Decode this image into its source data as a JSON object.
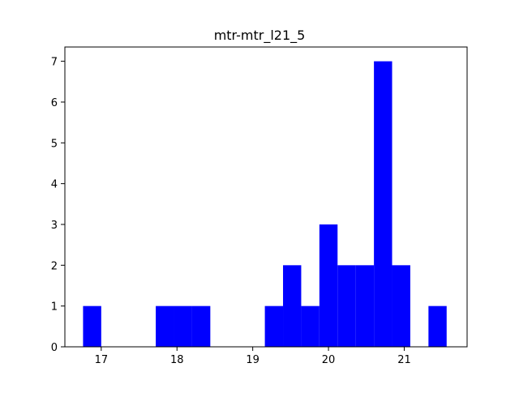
{
  "chart_data": {
    "type": "bar",
    "title": "mtr-mtr_l21_5",
    "xlabel": "",
    "ylabel": "",
    "xlim": [
      16.52,
      21.83
    ],
    "ylim": [
      0,
      7.35
    ],
    "xticks": [
      17,
      18,
      19,
      20,
      21
    ],
    "yticks": [
      0,
      1,
      2,
      3,
      4,
      5,
      6,
      7
    ],
    "bar_color": "#0000ff",
    "grid": false,
    "bins": [
      {
        "x0": 16.76,
        "x1": 17.0,
        "count": 1
      },
      {
        "x0": 17.0,
        "x1": 17.24,
        "count": 0
      },
      {
        "x0": 17.24,
        "x1": 17.48,
        "count": 0
      },
      {
        "x0": 17.48,
        "x1": 17.72,
        "count": 0
      },
      {
        "x0": 17.72,
        "x1": 17.96,
        "count": 1
      },
      {
        "x0": 17.96,
        "x1": 18.2,
        "count": 1
      },
      {
        "x0": 18.2,
        "x1": 18.44,
        "count": 1
      },
      {
        "x0": 18.44,
        "x1": 18.68,
        "count": 0
      },
      {
        "x0": 18.68,
        "x1": 18.92,
        "count": 0
      },
      {
        "x0": 18.92,
        "x1": 19.16,
        "count": 0
      },
      {
        "x0": 19.16,
        "x1": 19.4,
        "count": 1
      },
      {
        "x0": 19.4,
        "x1": 19.64,
        "count": 2
      },
      {
        "x0": 19.64,
        "x1": 19.88,
        "count": 1
      },
      {
        "x0": 19.88,
        "x1": 20.12,
        "count": 3
      },
      {
        "x0": 20.12,
        "x1": 20.36,
        "count": 2
      },
      {
        "x0": 20.36,
        "x1": 20.6,
        "count": 2
      },
      {
        "x0": 20.6,
        "x1": 20.84,
        "count": 7
      },
      {
        "x0": 20.84,
        "x1": 21.08,
        "count": 2
      },
      {
        "x0": 21.08,
        "x1": 21.32,
        "count": 0
      },
      {
        "x0": 21.32,
        "x1": 21.56,
        "count": 1
      }
    ]
  }
}
